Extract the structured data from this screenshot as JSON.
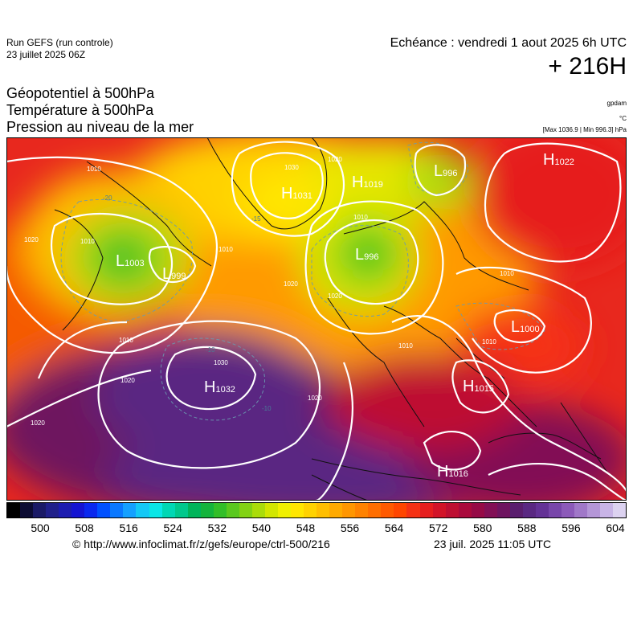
{
  "header": {
    "run_title": "Run GEFS (run controle)",
    "run_date": "23 juillet 2025 06Z",
    "echeance": "Echéance : vendredi 1 aout 2025 6h UTC",
    "lead_time": "+ 216H"
  },
  "variables": {
    "line1": "Géopotentiel à 500hPa",
    "line2": "Température à 500hPa",
    "line3": "Pression au niveau de la mer"
  },
  "units": {
    "geopotential": "gpdam",
    "temperature": "°C",
    "pressure_range": "[Max 1036.9 | Min 996.3] hPa"
  },
  "pressure_centers": [
    {
      "type": "H",
      "value": "1022"
    },
    {
      "type": "L",
      "value": "996"
    },
    {
      "type": "H",
      "value": "1019"
    },
    {
      "type": "H",
      "value": "1031"
    },
    {
      "type": "L",
      "value": "1003"
    },
    {
      "type": "L",
      "value": "999"
    },
    {
      "type": "L",
      "value": "996"
    },
    {
      "type": "L",
      "value": "1000"
    },
    {
      "type": "H",
      "value": "1032"
    },
    {
      "type": "H",
      "value": "1015"
    },
    {
      "type": "H",
      "value": "1016"
    }
  ],
  "isobar_labels": [
    "1010",
    "1030",
    "1020",
    "1010",
    "1020",
    "1010",
    "1010",
    "1010",
    "1010",
    "1020",
    "1030",
    "1020",
    "1020",
    "1020",
    "1010",
    "1010",
    "1020"
  ],
  "temperature_labels": [
    "-20",
    "-15",
    "-10",
    "-10"
  ],
  "colorbar": {
    "tick_labels": [
      "500",
      "508",
      "516",
      "524",
      "532",
      "540",
      "548",
      "556",
      "564",
      "572",
      "580",
      "588",
      "596",
      "604"
    ],
    "colors": [
      "#000000",
      "#0c0c33",
      "#1a1a66",
      "#20208a",
      "#1c1cb0",
      "#1414d2",
      "#0a28ee",
      "#0050ff",
      "#0a78ff",
      "#14a0ff",
      "#14c8f5",
      "#0ae6e6",
      "#00d7b4",
      "#00c88c",
      "#00b45a",
      "#14b43c",
      "#32be28",
      "#5ac81e",
      "#82d214",
      "#aadc0a",
      "#d2e600",
      "#f0f000",
      "#ffe600",
      "#ffd200",
      "#ffbe00",
      "#ffaa00",
      "#ff9600",
      "#ff8200",
      "#ff6e00",
      "#ff5a00",
      "#ff4600",
      "#f53214",
      "#e61e1e",
      "#d21428",
      "#be0f32",
      "#aa0a3c",
      "#960a46",
      "#820f55",
      "#6e145f",
      "#5a1e6e",
      "#5a2882",
      "#643296",
      "#7846aa",
      "#8c5ab9",
      "#a078c8",
      "#b496d7",
      "#c8b4e6",
      "#dcd2f0"
    ]
  },
  "footer": {
    "source": "© http://www.infoclimat.fr/z/gefs/europe/ctrl-500/216",
    "generated": "23 juil. 2025 11:05 UTC"
  }
}
